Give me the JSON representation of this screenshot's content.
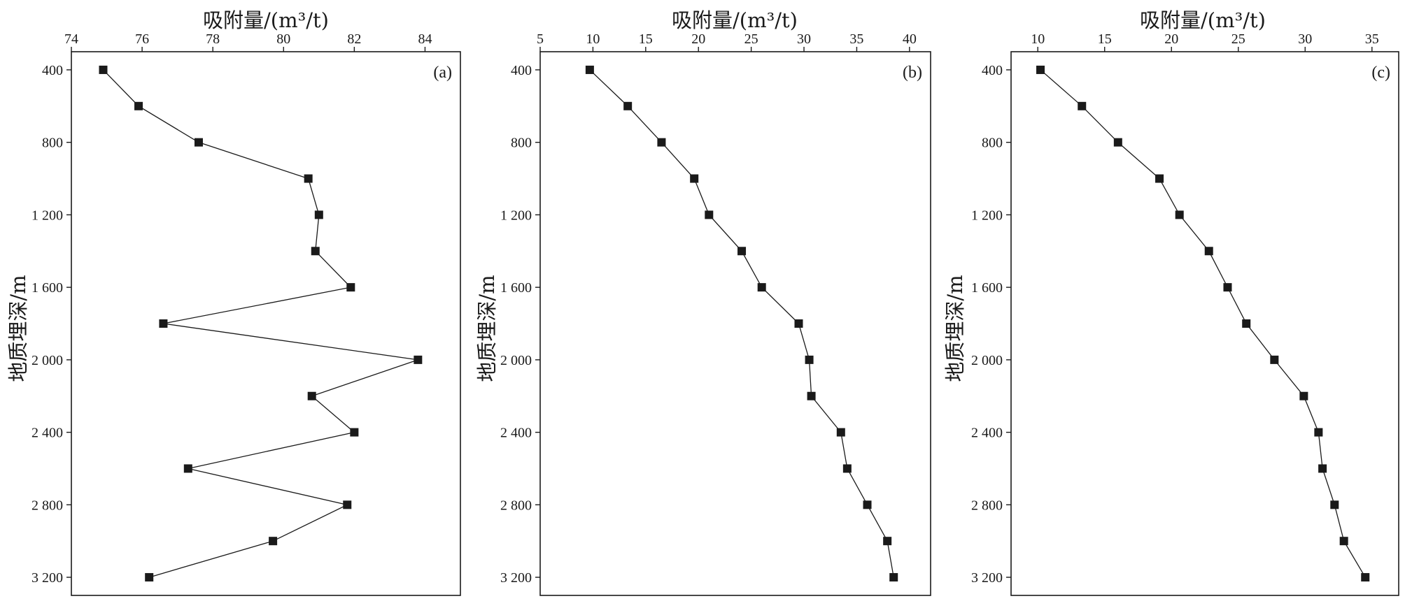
{
  "chart_data": [
    {
      "type": "line",
      "panel_label": "(a)",
      "xlabel": "吸附量/(m³/t)",
      "ylabel": "地质埋深/m",
      "x_axis_position": "top",
      "y_axis_inverted": true,
      "xlim": [
        74,
        85
      ],
      "ylim": [
        300,
        3300
      ],
      "xticks": [
        74,
        76,
        78,
        80,
        82,
        84
      ],
      "xtick_labels": [
        "74",
        "76",
        "78",
        "80",
        "82",
        "84"
      ],
      "yticks": [
        400,
        800,
        1200,
        1600,
        2000,
        2400,
        2800,
        3200
      ],
      "ytick_labels": [
        "400",
        "800",
        "1 200",
        "1 600",
        "2 000",
        "2 400",
        "2 800",
        "3 200"
      ],
      "grid": false,
      "marker": "square",
      "points": [
        {
          "depth": 400,
          "adsorption": 74.9
        },
        {
          "depth": 600,
          "adsorption": 75.9
        },
        {
          "depth": 800,
          "adsorption": 77.6
        },
        {
          "depth": 1000,
          "adsorption": 80.7
        },
        {
          "depth": 1200,
          "adsorption": 81.0
        },
        {
          "depth": 1400,
          "adsorption": 80.9
        },
        {
          "depth": 1600,
          "adsorption": 81.9
        },
        {
          "depth": 1800,
          "adsorption": 76.6
        },
        {
          "depth": 2000,
          "adsorption": 83.8
        },
        {
          "depth": 2200,
          "adsorption": 80.8
        },
        {
          "depth": 2400,
          "adsorption": 82.0
        },
        {
          "depth": 2600,
          "adsorption": 77.3
        },
        {
          "depth": 2800,
          "adsorption": 81.8
        },
        {
          "depth": 3000,
          "adsorption": 79.7
        },
        {
          "depth": 3200,
          "adsorption": 76.2
        }
      ]
    },
    {
      "type": "line",
      "panel_label": "(b)",
      "xlabel": "吸附量/(m³/t)",
      "ylabel": "地质埋深/m",
      "x_axis_position": "top",
      "y_axis_inverted": true,
      "xlim": [
        5,
        42
      ],
      "ylim": [
        300,
        3300
      ],
      "xticks": [
        5,
        10,
        15,
        20,
        25,
        30,
        35,
        40
      ],
      "xtick_labels": [
        "5",
        "10",
        "15",
        "20",
        "25",
        "30",
        "35",
        "40"
      ],
      "yticks": [
        400,
        800,
        1200,
        1600,
        2000,
        2400,
        2800,
        3200
      ],
      "ytick_labels": [
        "400",
        "800",
        "1 200",
        "1 600",
        "2 000",
        "2 400",
        "2 800",
        "3 200"
      ],
      "grid": false,
      "marker": "square",
      "points": [
        {
          "depth": 400,
          "adsorption": 9.7
        },
        {
          "depth": 600,
          "adsorption": 13.3
        },
        {
          "depth": 800,
          "adsorption": 16.5
        },
        {
          "depth": 1000,
          "adsorption": 19.6
        },
        {
          "depth": 1200,
          "adsorption": 21.0
        },
        {
          "depth": 1400,
          "adsorption": 24.1
        },
        {
          "depth": 1600,
          "adsorption": 26.0
        },
        {
          "depth": 1800,
          "adsorption": 29.5
        },
        {
          "depth": 2000,
          "adsorption": 30.5
        },
        {
          "depth": 2200,
          "adsorption": 30.7
        },
        {
          "depth": 2400,
          "adsorption": 33.5
        },
        {
          "depth": 2600,
          "adsorption": 34.1
        },
        {
          "depth": 2800,
          "adsorption": 36.0
        },
        {
          "depth": 3000,
          "adsorption": 37.9
        },
        {
          "depth": 3200,
          "adsorption": 38.5
        }
      ]
    },
    {
      "type": "line",
      "panel_label": "(c)",
      "xlabel": "吸附量/(m³/t)",
      "ylabel": "地质埋深/m",
      "x_axis_position": "top",
      "y_axis_inverted": true,
      "xlim": [
        8,
        37
      ],
      "ylim": [
        300,
        3300
      ],
      "xticks": [
        10,
        15,
        20,
        25,
        30,
        35
      ],
      "xtick_labels": [
        "10",
        "15",
        "20",
        "25",
        "30",
        "35"
      ],
      "yticks": [
        400,
        800,
        1200,
        1600,
        2000,
        2400,
        2800,
        3200
      ],
      "ytick_labels": [
        "400",
        "800",
        "1 200",
        "1 600",
        "2 000",
        "2 400",
        "2 800",
        "3 200"
      ],
      "grid": false,
      "marker": "square",
      "points": [
        {
          "depth": 400,
          "adsorption": 10.2
        },
        {
          "depth": 600,
          "adsorption": 13.3
        },
        {
          "depth": 800,
          "adsorption": 16.0
        },
        {
          "depth": 1000,
          "adsorption": 19.1
        },
        {
          "depth": 1200,
          "adsorption": 20.6
        },
        {
          "depth": 1400,
          "adsorption": 22.8
        },
        {
          "depth": 1600,
          "adsorption": 24.2
        },
        {
          "depth": 1800,
          "adsorption": 25.6
        },
        {
          "depth": 2000,
          "adsorption": 27.7
        },
        {
          "depth": 2200,
          "adsorption": 29.9
        },
        {
          "depth": 2400,
          "adsorption": 31.0
        },
        {
          "depth": 2600,
          "adsorption": 31.3
        },
        {
          "depth": 2800,
          "adsorption": 32.2
        },
        {
          "depth": 3000,
          "adsorption": 32.9
        },
        {
          "depth": 3200,
          "adsorption": 34.5
        }
      ]
    }
  ],
  "style": {
    "line_color": "#1a1a1a",
    "marker_color": "#1a1a1a",
    "axis_color": "#1a1a1a"
  }
}
